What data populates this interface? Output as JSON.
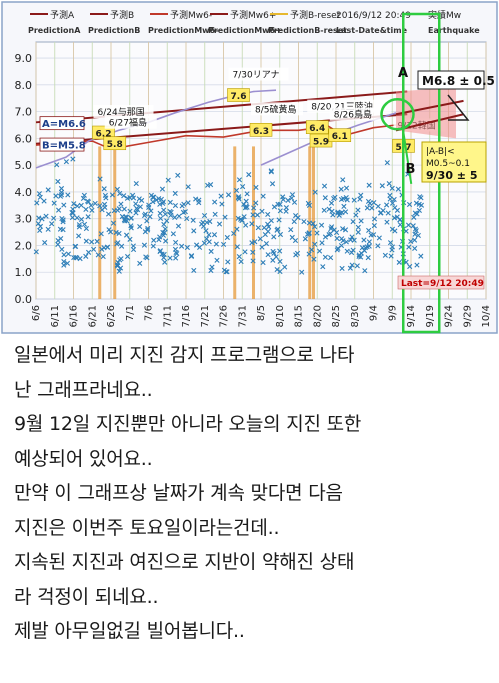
{
  "chart_data": {
    "type": "scatter",
    "title": "",
    "legend": {
      "placement": "top",
      "entries_jp": [
        "予測A",
        "予測B",
        "予測Mw6-",
        "予測Mw6+",
        "予測B-reset"
      ],
      "entries_en": [
        "PredictionA",
        "PredictionB",
        "PredictionMw6-",
        "PredictionMw6+",
        "PredictionB-reset"
      ],
      "timestamp": "2016/9/12 20:49",
      "date_label": "Last-Date&time",
      "quake_label": "実績Mw",
      "quake_label_en": "Earthquake"
    },
    "yticks": [
      "0.0",
      "1.0",
      "2.0",
      "3.0",
      "4.0",
      "5.0",
      "6.0",
      "7.0",
      "8.0",
      "9.0"
    ],
    "ylim": [
      0,
      9.6
    ],
    "xticks": [
      "6/6",
      "6/11",
      "6/16",
      "6/21",
      "6/26",
      "7/1",
      "7/6",
      "7/11",
      "7/16",
      "7/21",
      "7/26",
      "7/31",
      "8/5",
      "8/10",
      "8/15",
      "8/20",
      "8/25",
      "8/30",
      "9/4",
      "9/9",
      "9/14",
      "9/19",
      "9/24",
      "9/29",
      "10/4"
    ],
    "xlim_days": [
      0,
      120
    ],
    "series": [
      {
        "name": "予測A",
        "color": "#8b1a1a",
        "points": [
          [
            0,
            6.6
          ],
          [
            99,
            7.75
          ]
        ]
      },
      {
        "name": "予測B",
        "color": "#8b1a1a",
        "points": [
          [
            0,
            5.8
          ],
          [
            99,
            6.9
          ]
        ]
      },
      {
        "name": "予測Mw6-",
        "color": "#c0392b",
        "points": [
          [
            0,
            5.75
          ],
          [
            15,
            5.9
          ],
          [
            20,
            5.6
          ],
          [
            30,
            5.85
          ],
          [
            40,
            6.1
          ],
          [
            50,
            6.05
          ],
          [
            60,
            6.3
          ],
          [
            70,
            6.3
          ],
          [
            78,
            6.45
          ],
          [
            82,
            6.1
          ],
          [
            90,
            6.4
          ],
          [
            96,
            6.5
          ]
        ]
      },
      {
        "name": "予測Mw6+",
        "color": "#9b8fd0",
        "points": [
          [
            0,
            4.9
          ],
          [
            8,
            5.3
          ],
          [
            14,
            5.9
          ],
          [
            22,
            6.3
          ],
          [
            30,
            6.6
          ],
          [
            37,
            6.95
          ],
          [
            46,
            7.35
          ],
          [
            53,
            7.6
          ],
          [
            58,
            7.75
          ],
          [
            64,
            7.8
          ]
        ]
      },
      {
        "name": "予測B-reset",
        "color": "#9b8fd0",
        "points": [
          [
            60,
            5.0
          ],
          [
            68,
            5.5
          ],
          [
            76,
            6.0
          ],
          [
            86,
            6.5
          ],
          [
            96,
            6.95
          ]
        ]
      }
    ],
    "labels": {
      "a_label": "A=M6.6",
      "b_label": "B=M5.8",
      "m_label": "M6.8 ± 0.5",
      "ab_label_1": "|A-B|<",
      "ab_label_2": "M0.5~0.1",
      "date_range": "9/30 ± 5",
      "last_label": "Last=9/12 20:49",
      "letter_a": "A",
      "letter_b": "B"
    },
    "events": [
      {
        "label": "6/24与那国",
        "value": "6.2",
        "x": 18,
        "y": 6.2
      },
      {
        "label": "6/27福島",
        "value": "5.8",
        "x": 21,
        "y": 5.8
      },
      {
        "label": "7/30リアナ",
        "value": "7.6",
        "x": 54,
        "y": 7.6
      },
      {
        "label": "8/5硫黄島",
        "value": "6.3",
        "x": 60,
        "y": 6.3
      },
      {
        "label": "8/20,21三陸沖",
        "value": "6.4",
        "x": 75,
        "y": 6.4
      },
      {
        "label": "",
        "value": "5.9",
        "x": 76,
        "y": 5.9
      },
      {
        "label": "8/26鳥島",
        "value": "6.1",
        "x": 81,
        "y": 6.1
      },
      {
        "label": "9/12韓国",
        "value": "5.7",
        "x": 98,
        "y": 5.7
      }
    ],
    "scatter_desc": "dense blue x-markers roughly M1.5–5.2 across all dates"
  },
  "post": {
    "lines": [
      "일본에서 미리 지진 감지 프로그램으로 나타",
      "난 그래프라네요..",
      "9월 12일 지진뿐만 아니라 오늘의 지진 또한",
      "예상되어 있어요..",
      "만약 이 그래프상 날짜가 계속 맞다면 다음",
      "지진은 이번주 토요일이라는건데..",
      "지속된 지진과 여진으로 지반이 약해진 상태",
      "라 걱정이 되네요..",
      "제발 아무일없길 빌어봅니다.."
    ]
  }
}
